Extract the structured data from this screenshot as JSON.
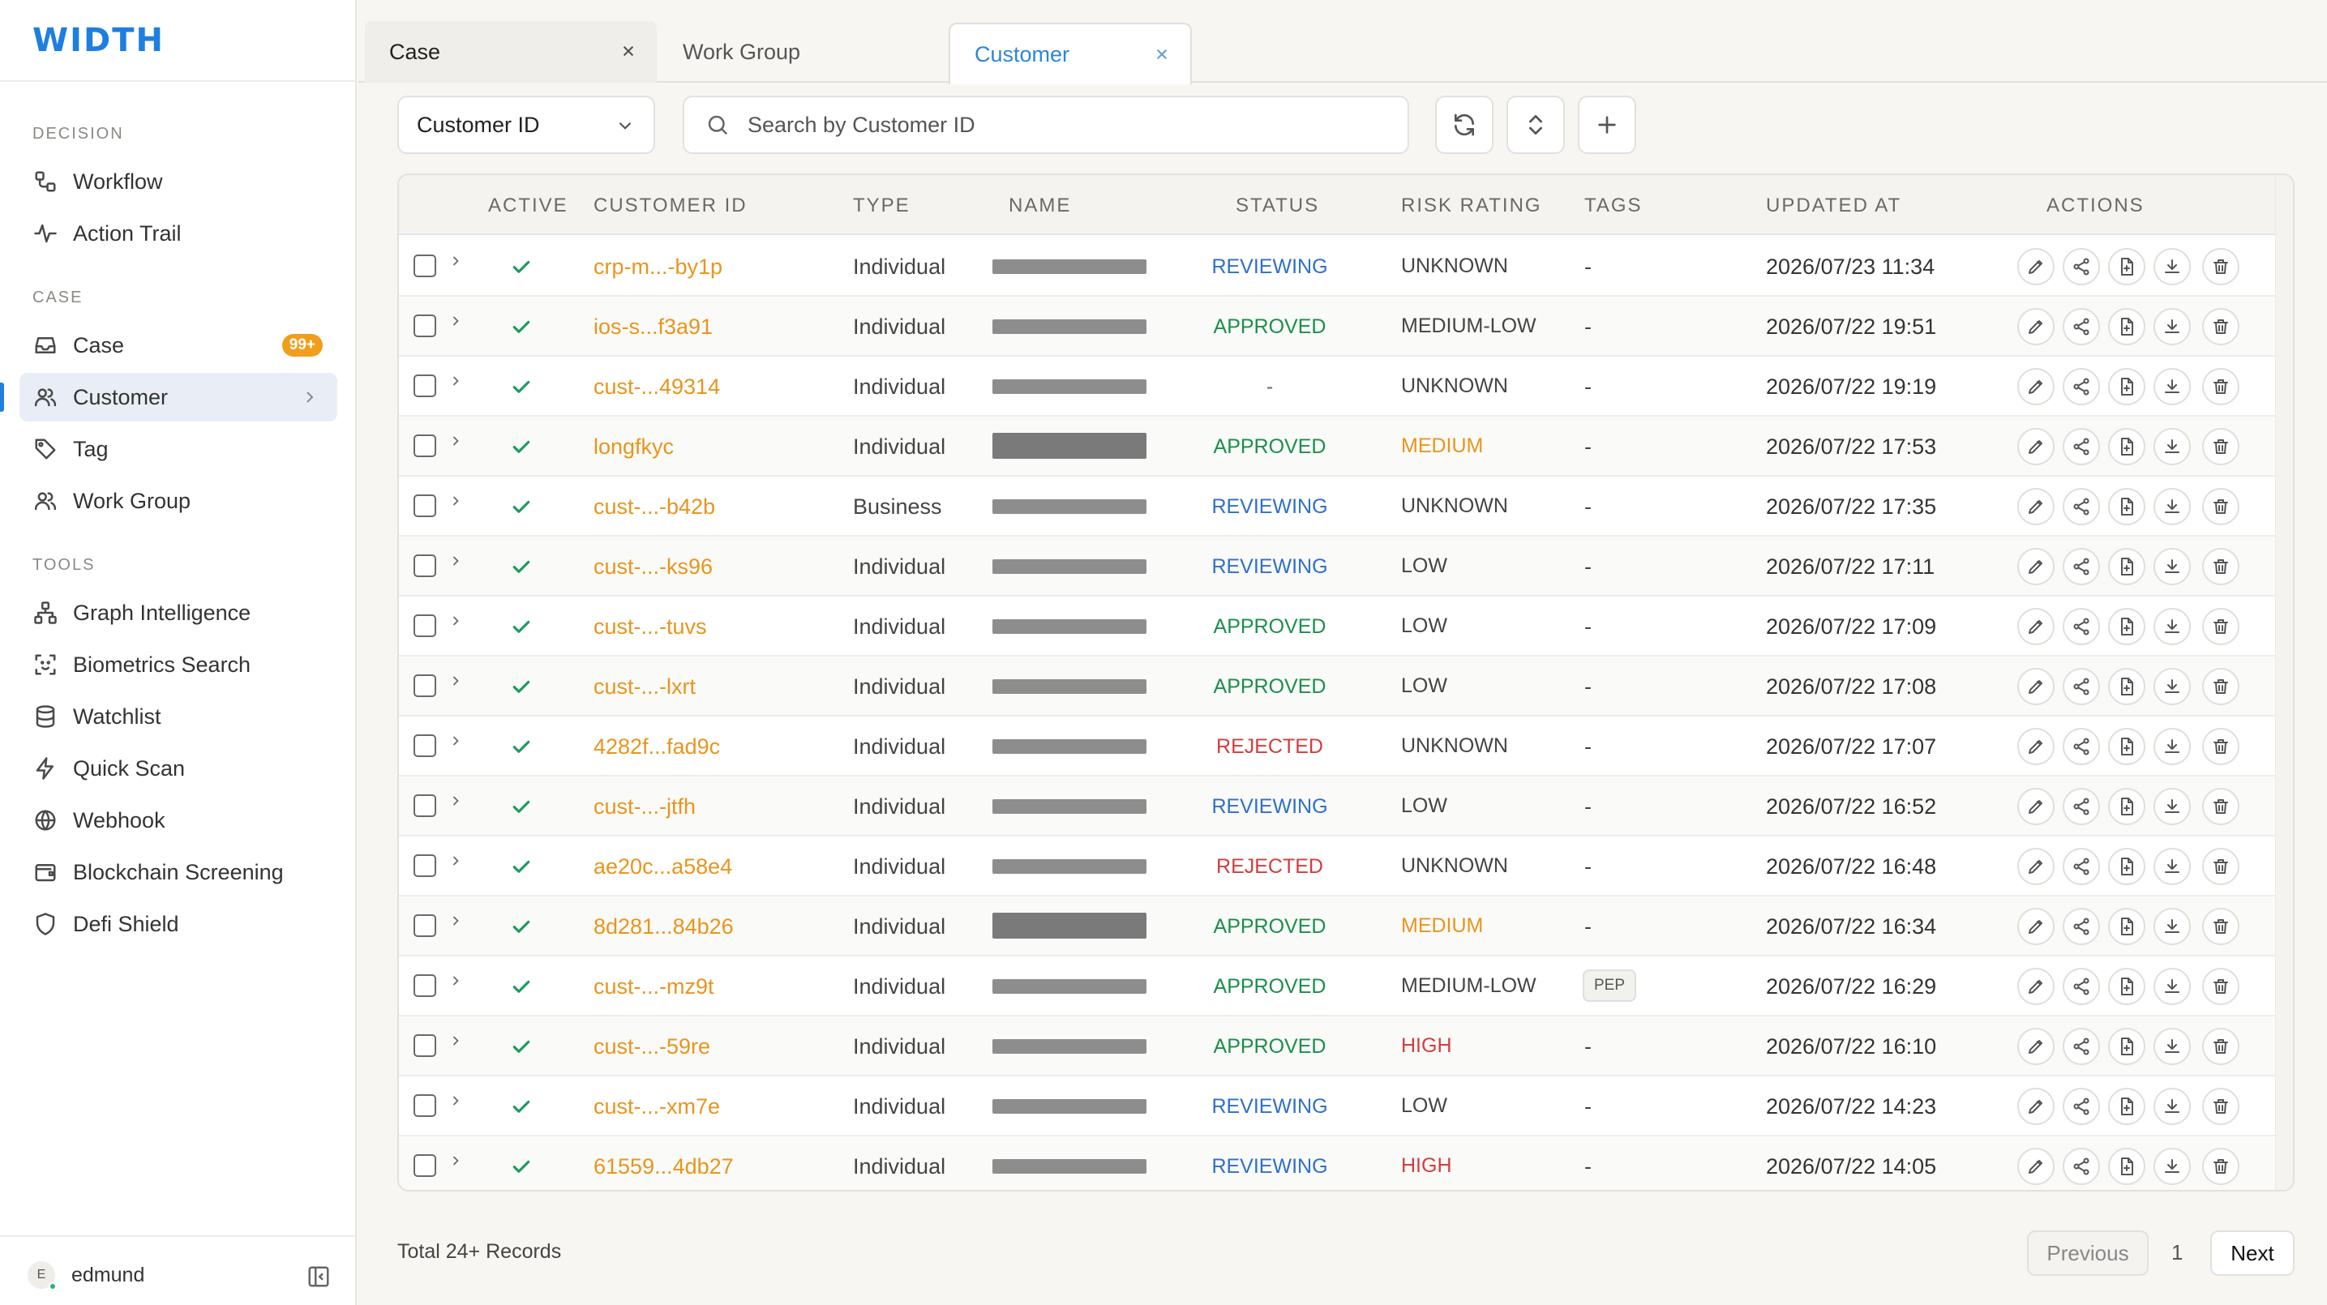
{
  "app": {
    "logo": "WIDTH"
  },
  "sidebar": {
    "sections": {
      "decision": "DECISION",
      "case": "CASE",
      "tools": "TOOLS"
    },
    "items": {
      "workflow": "Workflow",
      "action_trail": "Action Trail",
      "case": "Case",
      "case_badge": "99+",
      "customer": "Customer",
      "tag": "Tag",
      "work_group": "Work Group",
      "graph_intelligence": "Graph Intelligence",
      "biometrics_search": "Biometrics Search",
      "watchlist": "Watchlist",
      "quick_scan": "Quick Scan",
      "webhook": "Webhook",
      "blockchain_screening": "Blockchain Screening",
      "defi_shield": "Defi Shield"
    },
    "user": {
      "initial": "E",
      "name": "edmund"
    }
  },
  "tabs": {
    "case": "Case",
    "work_group": "Work Group",
    "customer": "Customer"
  },
  "toolbar": {
    "filter_value": "Customer ID",
    "search_placeholder": "Search by Customer ID"
  },
  "table": {
    "headers": {
      "active": "ACTIVE",
      "customer_id": "CUSTOMER ID",
      "type": "TYPE",
      "name": "NAME",
      "status": "STATUS",
      "risk_rating": "RISK RATING",
      "tags": "TAGS",
      "updated_at": "UPDATED AT",
      "actions": "ACTIONS"
    },
    "rows": [
      {
        "id": "crp-m...-by1p",
        "type": "Individual",
        "status": "REVIEWING",
        "risk": "UNKNOWN",
        "tags": "-",
        "updated": "2026/07/23 11:34",
        "redact": "light"
      },
      {
        "id": "ios-s...f3a91",
        "type": "Individual",
        "status": "APPROVED",
        "risk": "MEDIUM-LOW",
        "tags": "-",
        "updated": "2026/07/22 19:51",
        "redact": "light"
      },
      {
        "id": "cust-...49314",
        "type": "Individual",
        "status": "-",
        "risk": "UNKNOWN",
        "tags": "-",
        "updated": "2026/07/22 19:19",
        "redact": "light"
      },
      {
        "id": "longfkyc",
        "type": "Individual",
        "status": "APPROVED",
        "risk": "MEDIUM",
        "tags": "-",
        "updated": "2026/07/22 17:53",
        "redact": "heavy"
      },
      {
        "id": "cust-...-b42b",
        "type": "Business",
        "status": "REVIEWING",
        "risk": "UNKNOWN",
        "tags": "-",
        "updated": "2026/07/22 17:35",
        "redact": "light"
      },
      {
        "id": "cust-...-ks96",
        "type": "Individual",
        "status": "REVIEWING",
        "risk": "LOW",
        "tags": "-",
        "updated": "2026/07/22 17:11",
        "redact": "light"
      },
      {
        "id": "cust-...-tuvs",
        "type": "Individual",
        "status": "APPROVED",
        "risk": "LOW",
        "tags": "-",
        "updated": "2026/07/22 17:09",
        "redact": "light"
      },
      {
        "id": "cust-...-lxrt",
        "type": "Individual",
        "status": "APPROVED",
        "risk": "LOW",
        "tags": "-",
        "updated": "2026/07/22 17:08",
        "redact": "light"
      },
      {
        "id": "4282f...fad9c",
        "type": "Individual",
        "status": "REJECTED",
        "risk": "UNKNOWN",
        "tags": "-",
        "updated": "2026/07/22 17:07",
        "redact": "light"
      },
      {
        "id": "cust-...-jtfh",
        "type": "Individual",
        "status": "REVIEWING",
        "risk": "LOW",
        "tags": "-",
        "updated": "2026/07/22 16:52",
        "redact": "light"
      },
      {
        "id": "ae20c...a58e4",
        "type": "Individual",
        "status": "REJECTED",
        "risk": "UNKNOWN",
        "tags": "-",
        "updated": "2026/07/22 16:48",
        "redact": "light"
      },
      {
        "id": "8d281...84b26",
        "type": "Individual",
        "status": "APPROVED",
        "risk": "MEDIUM",
        "tags": "-",
        "updated": "2026/07/22 16:34",
        "redact": "heavy"
      },
      {
        "id": "cust-...-mz9t",
        "type": "Individual",
        "status": "APPROVED",
        "risk": "MEDIUM-LOW",
        "tags": "PEP",
        "updated": "2026/07/22 16:29",
        "redact": "light"
      },
      {
        "id": "cust-...-59re",
        "type": "Individual",
        "status": "APPROVED",
        "risk": "HIGH",
        "tags": "-",
        "updated": "2026/07/22 16:10",
        "redact": "light"
      },
      {
        "id": "cust-...-xm7e",
        "type": "Individual",
        "status": "REVIEWING",
        "risk": "LOW",
        "tags": "-",
        "updated": "2026/07/22 14:23",
        "redact": "light"
      },
      {
        "id": "61559...4db27",
        "type": "Individual",
        "status": "REVIEWING",
        "risk": "HIGH",
        "tags": "-",
        "updated": "2026/07/22 14:05",
        "redact": "light"
      }
    ]
  },
  "footer": {
    "total": "Total 24+ Records",
    "prev": "Previous",
    "page": "1",
    "next": "Next"
  },
  "colors": {
    "accent": "#1e7fe0",
    "customer_id": "#e8951d",
    "approved": "#1a8f4a",
    "reviewing": "#2f6fc9",
    "rejected": "#d43d3d"
  }
}
